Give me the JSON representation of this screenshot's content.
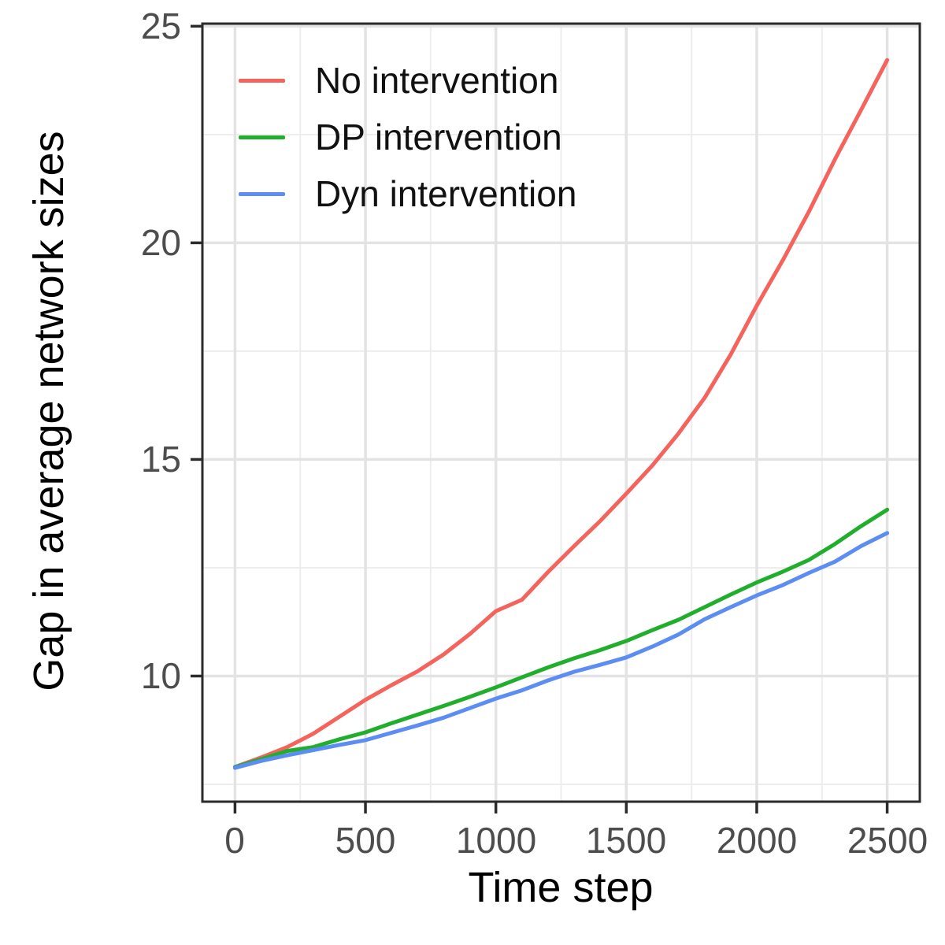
{
  "figure": {
    "x_axis_title": "Time step",
    "y_axis_title": "Gap in average network sizes"
  },
  "legend": {
    "position": "top-left-inside",
    "items": [
      {
        "label": "No intervention",
        "color": "#F4635C"
      },
      {
        "label": "DP intervention",
        "color": "#21AE2D"
      },
      {
        "label": "Dyn intervention",
        "color": "#5B8DF2"
      }
    ]
  },
  "chart_data": {
    "type": "line",
    "title": "",
    "xlabel": "Time step",
    "ylabel": "Gap in average network sizes",
    "xlim": [
      -125,
      2625
    ],
    "ylim": [
      7.1,
      25.06
    ],
    "x_ticks": [
      0,
      500,
      1000,
      1500,
      2000,
      2500
    ],
    "y_ticks": [
      10,
      15,
      20,
      25
    ],
    "grid": "major-and-minor",
    "panel_border": true,
    "background": "#ffffff",
    "gridline_major_color": "#e3e3e3",
    "gridline_minor_color": "#ededed",
    "axis_text_color": "#4d4d4d",
    "x": [
      0,
      100,
      200,
      300,
      400,
      500,
      600,
      700,
      800,
      900,
      1000,
      1100,
      1200,
      1300,
      1400,
      1500,
      1600,
      1700,
      1800,
      1900,
      2000,
      2100,
      2200,
      2300,
      2400,
      2500
    ],
    "series": [
      {
        "name": "No intervention",
        "color": "#F4635C",
        "values": [
          7.9,
          8.12,
          8.36,
          8.67,
          9.06,
          9.45,
          9.79,
          10.11,
          10.5,
          10.97,
          11.5,
          11.76,
          12.4,
          13.0,
          13.58,
          14.21,
          14.86,
          15.6,
          16.42,
          17.42,
          18.55,
          19.6,
          20.72,
          21.93,
          23.07,
          24.22
        ]
      },
      {
        "name": "DP intervention",
        "color": "#21AE2D",
        "values": [
          7.9,
          8.08,
          8.27,
          8.36,
          8.54,
          8.7,
          8.91,
          9.11,
          9.31,
          9.52,
          9.74,
          9.97,
          10.2,
          10.41,
          10.6,
          10.81,
          11.06,
          11.3,
          11.59,
          11.88,
          12.16,
          12.41,
          12.68,
          13.05,
          13.46,
          13.84
        ]
      },
      {
        "name": "Dyn intervention",
        "color": "#5B8DF2",
        "values": [
          7.88,
          8.04,
          8.17,
          8.29,
          8.41,
          8.52,
          8.69,
          8.86,
          9.04,
          9.26,
          9.48,
          9.67,
          9.9,
          10.1,
          10.26,
          10.43,
          10.68,
          10.96,
          11.31,
          11.59,
          11.86,
          12.1,
          12.38,
          12.64,
          13.0,
          13.3
        ]
      }
    ]
  }
}
